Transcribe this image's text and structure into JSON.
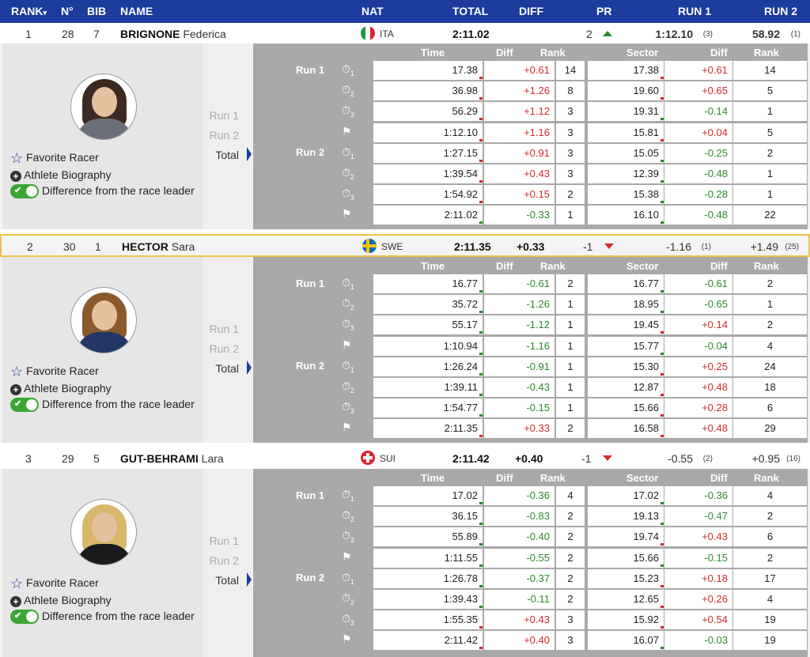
{
  "header": {
    "rank": "RANK",
    "rank_arrow": "▾",
    "no": "N°",
    "bib": "BIB",
    "name": "NAME",
    "nat": "NAT",
    "total": "TOTAL",
    "diff": "DIFF",
    "pr": "PR",
    "run1": "RUN 1",
    "run2": "RUN 2"
  },
  "labels": {
    "fav": "Favorite Racer",
    "bio": "Athlete Biography",
    "diff_leader": "Difference from the race leader",
    "nav_run1": "Run 1",
    "nav_run2": "Run 2",
    "nav_total": "Total",
    "col_time": "Time",
    "col_diff": "Diff",
    "col_rank": "Rank",
    "col_sector": "Sector",
    "col_diff2": "Diff",
    "col_rank2": "Rank",
    "grid_run1": "Run 1",
    "grid_run2": "Run 2"
  },
  "athletes": [
    {
      "rank": "1",
      "no": "28",
      "bib": "7",
      "last": "BRIGNONE",
      "first": "Federica",
      "nat": "ITA",
      "total": "2:11.02",
      "diff": "",
      "pr": "2",
      "pr_dir": "up",
      "run1": "1:12.10",
      "run1_rank": "(3)",
      "run2": "58.92",
      "run2_rank": "(1)",
      "rows": [
        [
          "17.38",
          "+0.61",
          "14",
          "17.38",
          "+0.61",
          "14"
        ],
        [
          "36.98",
          "+1.26",
          "8",
          "19.60",
          "+0.65",
          "5"
        ],
        [
          "56.29",
          "+1.12",
          "3",
          "19.31",
          "-0.14",
          "1"
        ],
        [
          "1:12.10",
          "+1.16",
          "3",
          "15.81",
          "+0.04",
          "5"
        ],
        [
          "1:27.15",
          "+0.91",
          "3",
          "15.05",
          "-0.25",
          "2"
        ],
        [
          "1:39.54",
          "+0.43",
          "3",
          "12.39",
          "-0.48",
          "1"
        ],
        [
          "1:54.92",
          "+0.15",
          "2",
          "15.38",
          "-0.28",
          "1"
        ],
        [
          "2:11.02",
          "-0.33",
          "1",
          "16.10",
          "-0.48",
          "22"
        ]
      ]
    },
    {
      "rank": "2",
      "no": "30",
      "bib": "1",
      "last": "HECTOR",
      "first": "Sara",
      "nat": "SWE",
      "total": "2:11.35",
      "diff": "+0.33",
      "pr": "-1",
      "pr_dir": "down",
      "run1": "-1.16",
      "run1_rank": "(1)",
      "run2": "+1.49",
      "run2_rank": "(25)",
      "rows": [
        [
          "16.77",
          "-0.61",
          "2",
          "16.77",
          "-0.61",
          "2"
        ],
        [
          "35.72",
          "-1.26",
          "1",
          "18.95",
          "-0.65",
          "1"
        ],
        [
          "55.17",
          "-1.12",
          "1",
          "19.45",
          "+0.14",
          "2"
        ],
        [
          "1:10.94",
          "-1.16",
          "1",
          "15.77",
          "-0.04",
          "4"
        ],
        [
          "1:26.24",
          "-0.91",
          "1",
          "15.30",
          "+0.25",
          "24"
        ],
        [
          "1:39.11",
          "-0.43",
          "1",
          "12.87",
          "+0.48",
          "18"
        ],
        [
          "1:54.77",
          "-0.15",
          "1",
          "15.66",
          "+0.28",
          "6"
        ],
        [
          "2:11.35",
          "+0.33",
          "2",
          "16.58",
          "+0.48",
          "29"
        ]
      ]
    },
    {
      "rank": "3",
      "no": "29",
      "bib": "5",
      "last": "GUT-BEHRAMI",
      "first": "Lara",
      "nat": "SUI",
      "total": "2:11.42",
      "diff": "+0.40",
      "pr": "-1",
      "pr_dir": "down",
      "run1": "-0.55",
      "run1_rank": "(2)",
      "run2": "+0.95",
      "run2_rank": "(16)",
      "rows": [
        [
          "17.02",
          "-0.36",
          "4",
          "17.02",
          "-0.36",
          "4"
        ],
        [
          "36.15",
          "-0.83",
          "2",
          "19.13",
          "-0.47",
          "2"
        ],
        [
          "55.89",
          "-0.40",
          "2",
          "19.74",
          "+0.43",
          "6"
        ],
        [
          "1:11.55",
          "-0.55",
          "2",
          "15.66",
          "-0.15",
          "2"
        ],
        [
          "1:26.78",
          "-0.37",
          "2",
          "15.23",
          "+0.18",
          "17"
        ],
        [
          "1:39.43",
          "-0.11",
          "2",
          "12.65",
          "+0.26",
          "4"
        ],
        [
          "1:55.35",
          "+0.43",
          "3",
          "15.92",
          "+0.54",
          "19"
        ],
        [
          "2:11.42",
          "+0.40",
          "3",
          "16.07",
          "-0.03",
          "19"
        ]
      ]
    }
  ],
  "icons": [
    "stopwatch-1-icon",
    "stopwatch-2-icon",
    "stopwatch-3-icon",
    "finish-flag-icon"
  ],
  "colors": {
    "header": "#1c3b9c",
    "positive": "#d12b2b",
    "negative": "#2a8a2a",
    "toggle": "#3aa635",
    "highlight": "#f0c14b"
  }
}
